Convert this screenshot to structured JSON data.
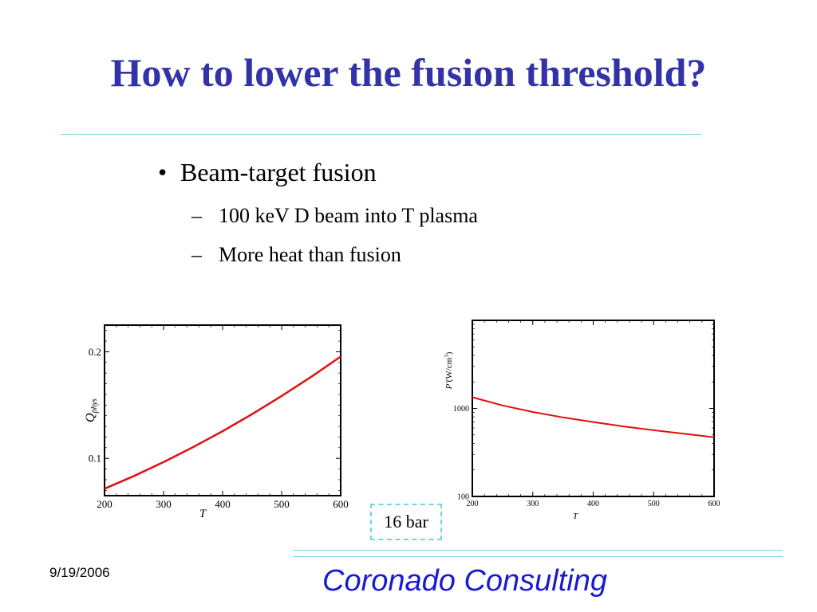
{
  "slide": {
    "title": "How to lower the fusion threshold?",
    "bullet": "Beam-target fusion",
    "bullet_marker": "•",
    "sub_marker": "–",
    "sub_bullets": [
      "100 keV D beam into T plasma",
      "More heat than fusion"
    ],
    "callout": "16 bar",
    "date": "9/19/2006",
    "company": "Coronado Consulting"
  },
  "colors": {
    "title": "#3333a8",
    "curve": "#e01010",
    "company": "#1a1ad0",
    "rule": "#7fd3e0"
  },
  "chart_data": [
    {
      "type": "line",
      "title": "",
      "xlabel": "T",
      "ylabel_main": "Q",
      "ylabel_sub": "phys",
      "xlim": [
        200,
        600
      ],
      "ylim": [
        0.065,
        0.225
      ],
      "x_ticks": [
        200,
        300,
        400,
        500,
        600
      ],
      "y_ticks": [
        0.1,
        0.2
      ],
      "grid": false,
      "series": [
        {
          "x": [
            200,
            250,
            300,
            350,
            400,
            450,
            500,
            550,
            600
          ],
          "y": [
            0.0715,
            0.0835,
            0.0965,
            0.1105,
            0.1255,
            0.1415,
            0.1585,
            0.1765,
            0.1955
          ]
        }
      ]
    },
    {
      "type": "line",
      "title": "",
      "xlabel": "T",
      "ylabel_main": "P'",
      "ylabel_units": "(W/cm",
      "ylabel_sup": "3",
      "ylabel_close": ")",
      "y_scale": "log",
      "xlim": [
        200,
        600
      ],
      "ylim": [
        100,
        10000
      ],
      "x_ticks": [
        200,
        300,
        400,
        500,
        600
      ],
      "y_ticks": [
        100,
        1000
      ],
      "grid": false,
      "series": [
        {
          "x": [
            200,
            250,
            300,
            350,
            400,
            450,
            500,
            550,
            600
          ],
          "y": [
            1340,
            1080,
            910,
            790,
            700,
            625,
            565,
            515,
            470
          ]
        }
      ]
    }
  ]
}
